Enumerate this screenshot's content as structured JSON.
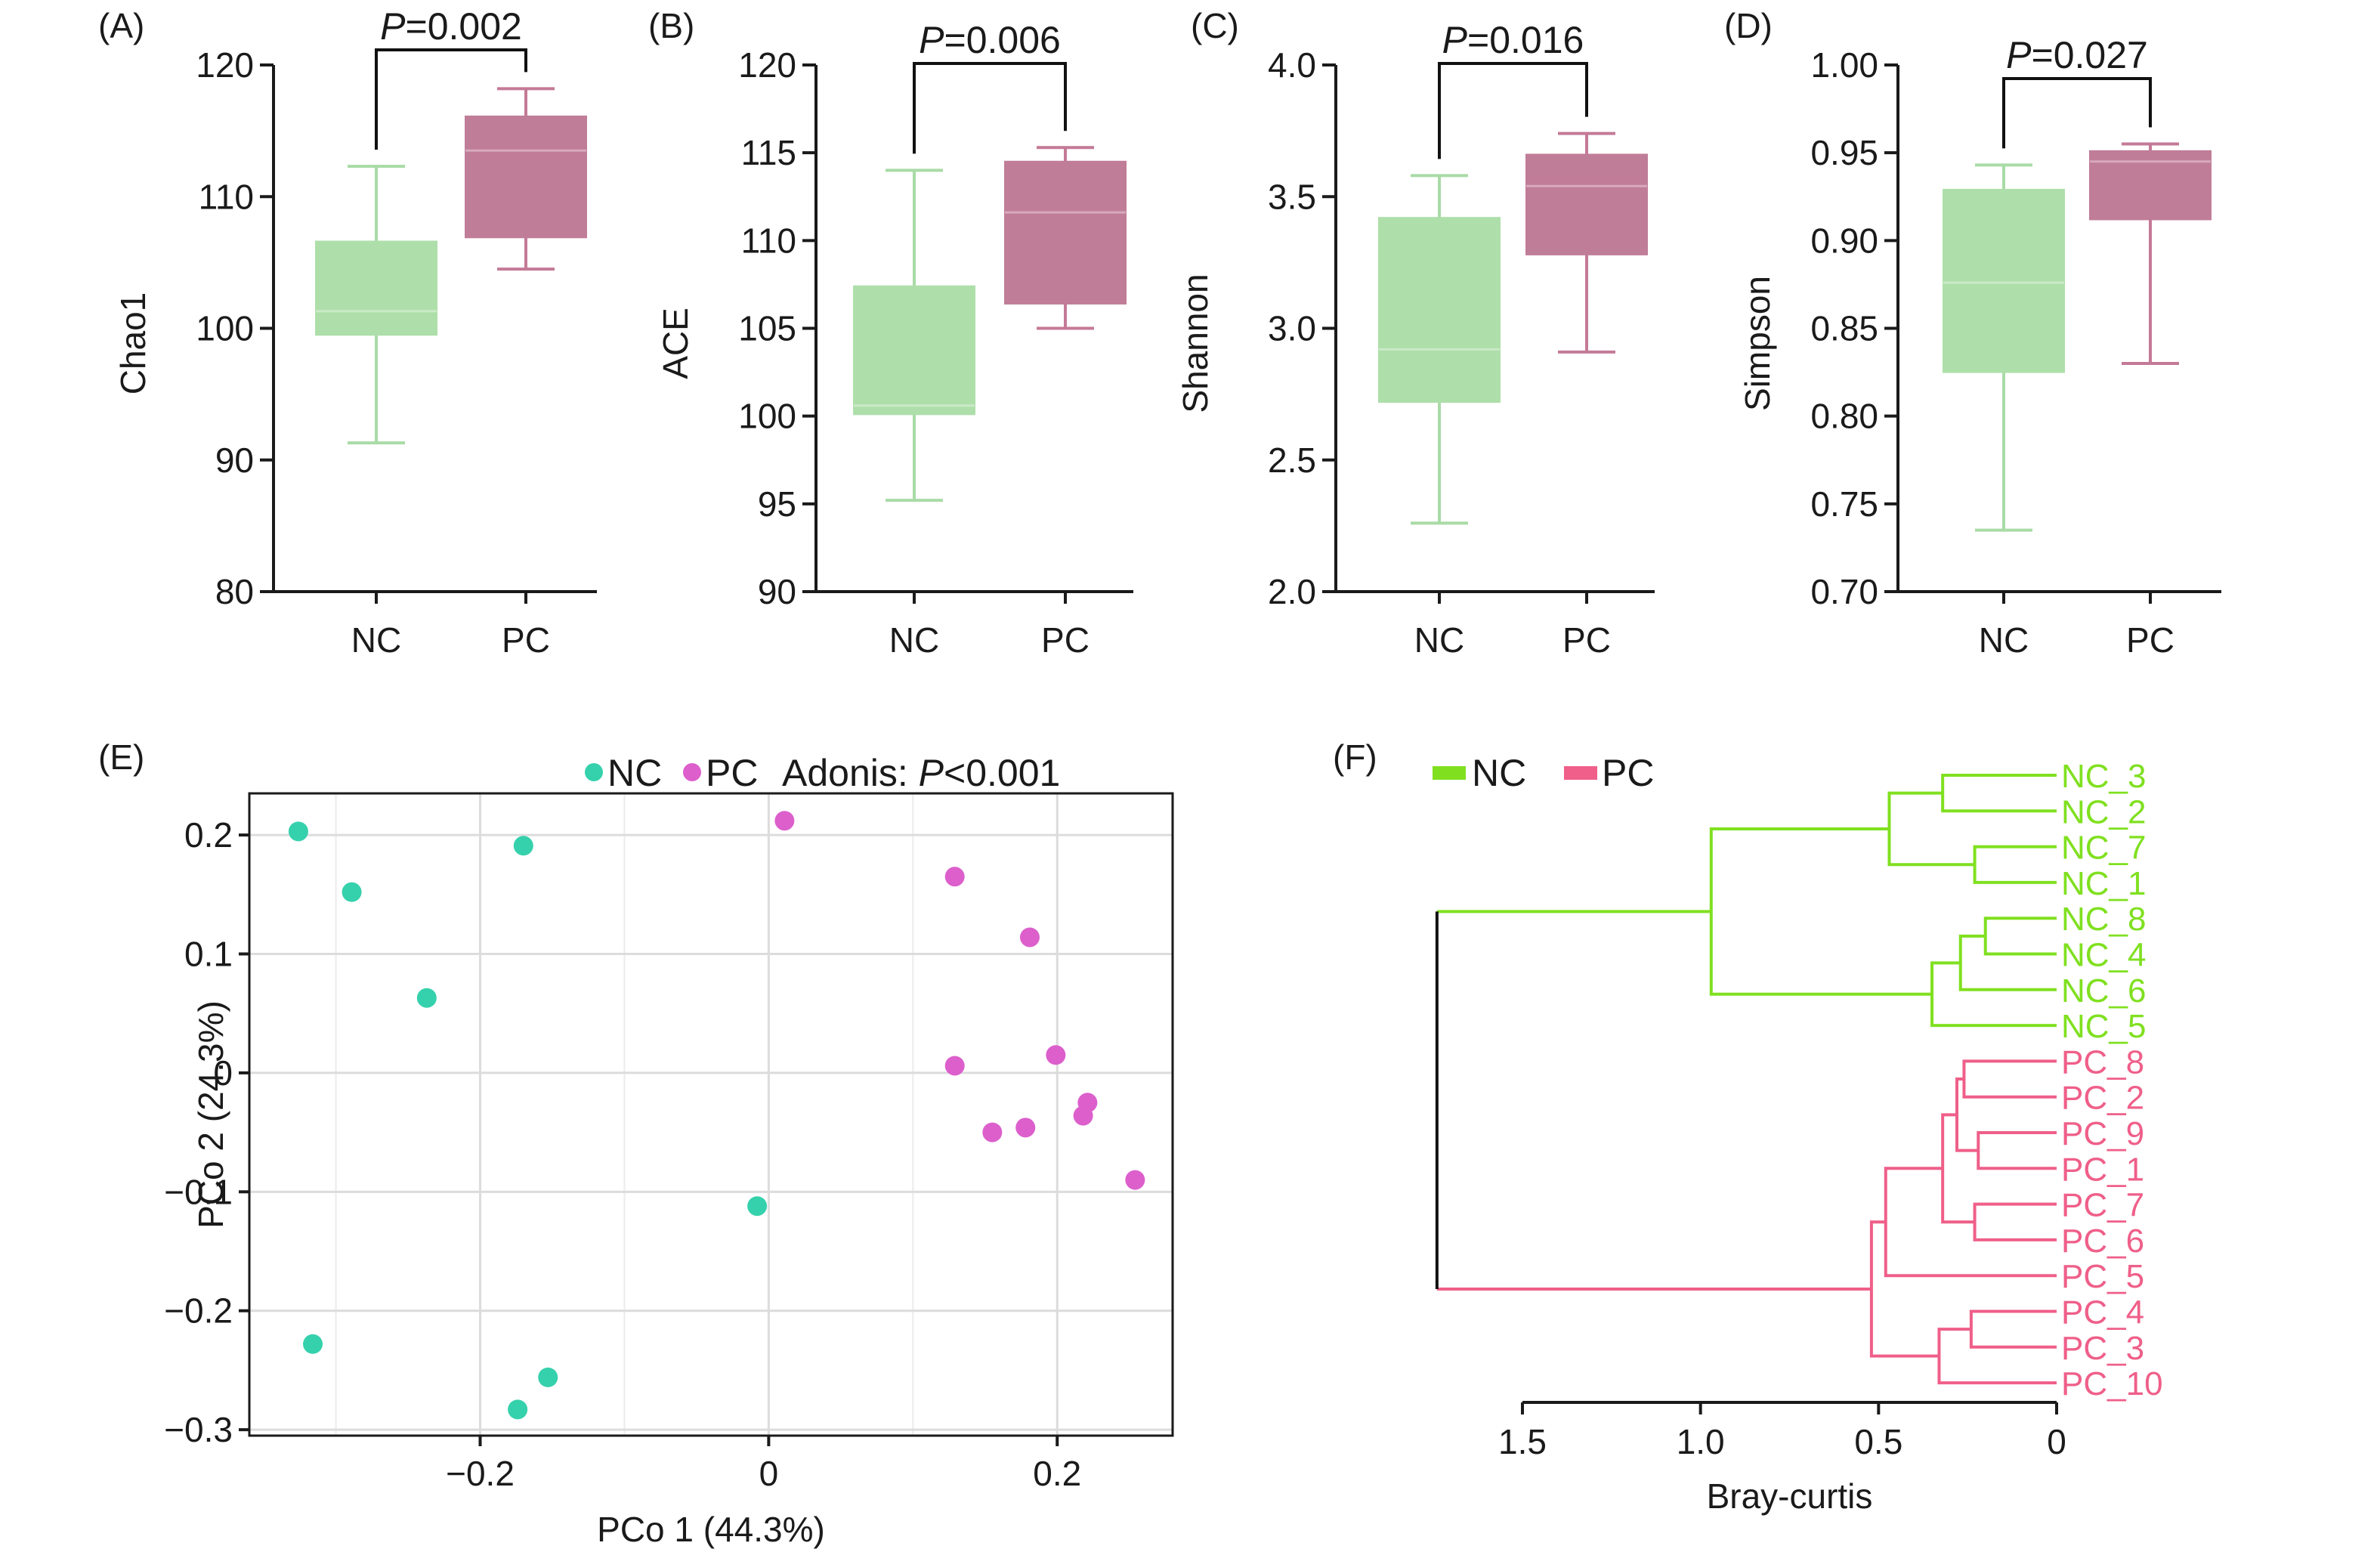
{
  "colors": {
    "nc_box": "#aedfaa",
    "nc_whisker": "#a9dba6",
    "pc_box": "#c07d98",
    "pc_whisker": "#c47a97",
    "nc_point": "#35d1ac",
    "pc_point": "#dc5fcc",
    "nc_tree": "#80e020",
    "pc_tree": "#ef5f89",
    "root_tree": "#111111"
  },
  "chart_data": [
    {
      "id": "A",
      "panel_label": "(A)",
      "type": "box",
      "ylabel": "Chao1",
      "ylim": [
        80,
        120
      ],
      "yticks": [
        80,
        90,
        100,
        110,
        120
      ],
      "ytick_labels": [
        "80",
        "90",
        "100",
        "110",
        "120"
      ],
      "categories": [
        "NC",
        "PC"
      ],
      "boxes": [
        {
          "group": "NC",
          "min": 91.3,
          "q1": 99.5,
          "median": 101.3,
          "q3": 106.6,
          "max": 112.3
        },
        {
          "group": "PC",
          "min": 104.5,
          "q1": 106.9,
          "median": 113.5,
          "q3": 116.1,
          "max": 118.2
        }
      ],
      "p_italic": "P",
      "p_value": "=0.002"
    },
    {
      "id": "B",
      "panel_label": "(B)",
      "type": "box",
      "ylabel": "ACE",
      "ylim": [
        90,
        120
      ],
      "yticks": [
        90,
        95,
        100,
        105,
        110,
        115,
        120
      ],
      "ytick_labels": [
        "90",
        "95",
        "100",
        "105",
        "110",
        "115",
        "120"
      ],
      "categories": [
        "NC",
        "PC"
      ],
      "boxes": [
        {
          "group": "NC",
          "min": 95.2,
          "q1": 100.1,
          "median": 100.6,
          "q3": 107.4,
          "max": 114.0
        },
        {
          "group": "PC",
          "min": 105.0,
          "q1": 106.4,
          "median": 111.6,
          "q3": 114.5,
          "max": 115.3
        }
      ],
      "p_italic": "P",
      "p_value": "=0.006"
    },
    {
      "id": "C",
      "panel_label": "(C)",
      "type": "box",
      "ylabel": "Shannon",
      "ylim": [
        2.0,
        4.0
      ],
      "yticks": [
        2.0,
        2.5,
        3.0,
        3.5,
        4.0
      ],
      "ytick_labels": [
        "2.0",
        "2.5",
        "3.0",
        "3.5",
        "4.0"
      ],
      "categories": [
        "NC",
        "PC"
      ],
      "boxes": [
        {
          "group": "NC",
          "min": 2.26,
          "q1": 2.72,
          "median": 2.92,
          "q3": 3.42,
          "max": 3.58
        },
        {
          "group": "PC",
          "min": 2.91,
          "q1": 3.28,
          "median": 3.54,
          "q3": 3.66,
          "max": 3.74
        }
      ],
      "p_italic": "P",
      "p_value": "=0.016"
    },
    {
      "id": "D",
      "panel_label": "(D)",
      "type": "box",
      "ylabel": "Simpson",
      "ylim": [
        0.7,
        1.0
      ],
      "yticks": [
        0.7,
        0.75,
        0.8,
        0.85,
        0.9,
        0.95,
        1.0
      ],
      "ytick_labels": [
        "0.70",
        "0.75",
        "0.80",
        "0.85",
        "0.90",
        "0.95",
        "1.00"
      ],
      "categories": [
        "NC",
        "PC"
      ],
      "boxes": [
        {
          "group": "NC",
          "min": 0.735,
          "q1": 0.825,
          "median": 0.876,
          "q3": 0.929,
          "max": 0.943
        },
        {
          "group": "PC",
          "min": 0.83,
          "q1": 0.912,
          "median": 0.945,
          "q3": 0.951,
          "max": 0.955
        }
      ],
      "p_italic": "P",
      "p_value": "=0.027"
    },
    {
      "id": "E",
      "panel_label": "(E)",
      "type": "scatter",
      "xlabel": "PCo 1 (44.3%)",
      "ylabel": "PCo 2 (24.3%)",
      "xlim": [
        -0.36,
        0.28
      ],
      "ylim": [
        -0.305,
        0.235
      ],
      "xticks": [
        -0.2,
        0,
        0.2
      ],
      "xtick_labels": [
        "−0.2",
        "0",
        "0.2"
      ],
      "yticks": [
        -0.3,
        -0.2,
        -0.1,
        0,
        0.1,
        0.2
      ],
      "ytick_labels": [
        "−0.3",
        "−0.2",
        "−0.1",
        "0",
        "0.1",
        "0.2"
      ],
      "x_minor_grid": [
        -0.3,
        -0.1,
        0.1
      ],
      "legend": {
        "nc_label": "NC",
        "pc_label": "PC",
        "stat_prefix": "Adonis: ",
        "stat_italic": "P",
        "stat_value": "<0.001",
        "position": "top"
      },
      "series": [
        {
          "name": "NC",
          "points": [
            [
              -0.326,
              0.203
            ],
            [
              -0.289,
              0.152
            ],
            [
              -0.17,
              0.191
            ],
            [
              -0.237,
              0.063
            ],
            [
              -0.008,
              -0.112
            ],
            [
              -0.316,
              -0.228
            ],
            [
              -0.153,
              -0.256
            ],
            [
              -0.174,
              -0.283
            ]
          ]
        },
        {
          "name": "PC",
          "points": [
            [
              0.011,
              0.212
            ],
            [
              0.129,
              0.165
            ],
            [
              0.181,
              0.114
            ],
            [
              0.129,
              0.006
            ],
            [
              0.199,
              0.015
            ],
            [
              0.221,
              -0.025
            ],
            [
              0.218,
              -0.036
            ],
            [
              0.178,
              -0.046
            ],
            [
              0.155,
              -0.05
            ],
            [
              0.254,
              -0.09
            ]
          ]
        }
      ]
    },
    {
      "id": "F",
      "panel_label": "(F)",
      "type": "dendrogram",
      "xlabel": "Bray-curtis",
      "xlim": [
        0,
        1.5
      ],
      "xticks": [
        1.5,
        1.0,
        0.5,
        0
      ],
      "xtick_labels": [
        "1.5",
        "1.0",
        "0.5",
        "0"
      ],
      "legend": {
        "nc_label": "NC",
        "pc_label": "PC"
      },
      "leaves": [
        "NC_3",
        "NC_2",
        "NC_7",
        "NC_1",
        "NC_8",
        "NC_4",
        "NC_6",
        "NC_5",
        "PC_8",
        "PC_2",
        "PC_9",
        "PC_1",
        "PC_7",
        "PC_6",
        "PC_5",
        "PC_4",
        "PC_3",
        "PC_10"
      ],
      "root_height": 1.74,
      "merges": [
        {
          "a": "NC_3",
          "b": "NC_2",
          "h": 0.32,
          "id": "n1",
          "group": "NC"
        },
        {
          "a": "NC_7",
          "b": "NC_1",
          "h": 0.23,
          "id": "n2",
          "group": "NC"
        },
        {
          "a": "n1",
          "b": "n2",
          "h": 0.47,
          "id": "n3",
          "group": "NC"
        },
        {
          "a": "NC_8",
          "b": "NC_4",
          "h": 0.2,
          "id": "n4",
          "group": "NC"
        },
        {
          "a": "n4",
          "b": "NC_6",
          "h": 0.27,
          "id": "n5",
          "group": "NC"
        },
        {
          "a": "n5",
          "b": "NC_5",
          "h": 0.35,
          "id": "n6",
          "group": "NC"
        },
        {
          "a": "n3",
          "b": "n6",
          "h": 0.97,
          "id": "n7",
          "group": "NC"
        },
        {
          "a": "PC_8",
          "b": "PC_2",
          "h": 0.26,
          "id": "p1",
          "group": "PC"
        },
        {
          "a": "PC_9",
          "b": "PC_1",
          "h": 0.22,
          "id": "p2",
          "group": "PC"
        },
        {
          "a": "p1",
          "b": "p2",
          "h": 0.28,
          "id": "p3",
          "group": "PC"
        },
        {
          "a": "PC_7",
          "b": "PC_6",
          "h": 0.23,
          "id": "p4",
          "group": "PC"
        },
        {
          "a": "p3",
          "b": "p4",
          "h": 0.32,
          "id": "p5",
          "group": "PC"
        },
        {
          "a": "p5",
          "b": "PC_5",
          "h": 0.48,
          "id": "p6",
          "group": "PC"
        },
        {
          "a": "PC_4",
          "b": "PC_3",
          "h": 0.24,
          "id": "p7",
          "group": "PC"
        },
        {
          "a": "p7",
          "b": "PC_10",
          "h": 0.33,
          "id": "p8",
          "group": "PC"
        },
        {
          "a": "p6",
          "b": "p8",
          "h": 0.52,
          "id": "p9",
          "group": "PC"
        },
        {
          "a": "n7",
          "b": "p9",
          "h": 1.74,
          "id": "root",
          "group": "root"
        }
      ]
    }
  ]
}
